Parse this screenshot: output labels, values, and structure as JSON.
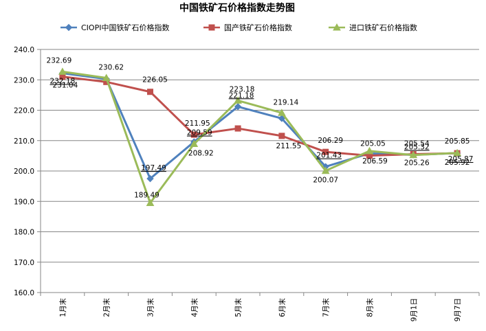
{
  "chart_data": {
    "type": "line",
    "title": "中国铁矿石价格指数走势图",
    "categories": [
      "1月末",
      "2月末",
      "3月末",
      "4月末",
      "5月末",
      "6月末",
      "7月末",
      "8月末",
      "9月1日",
      "9月7日"
    ],
    "ylim": [
      160,
      240
    ],
    "yticks": [
      "160.0",
      "170.0",
      "180.0",
      "190.0",
      "200.0",
      "210.0",
      "220.0",
      "230.0",
      "240.0"
    ],
    "grid": true,
    "legend_position": "top",
    "series": [
      {
        "name": "CIOPI中国铁矿石价格指数",
        "color": "#4F81BD",
        "marker": "diamond",
        "values": [
          232.18,
          230.3,
          197.49,
          209.59,
          221.18,
          217.3,
          201.43,
          205.8,
          205.32,
          205.87
        ],
        "labels": [
          "232.18",
          "",
          "197.49",
          "209.59",
          "221.18",
          "",
          "201.43",
          "",
          "205.32",
          "205.87"
        ]
      },
      {
        "name": "国产铁矿石价格指数",
        "color": "#C0504D",
        "marker": "square",
        "values": [
          231.04,
          229.3,
          226.05,
          211.95,
          214.0,
          211.55,
          206.29,
          205.05,
          205.54,
          205.85
        ],
        "labels": [
          "231.04",
          "",
          "226.05",
          "211.95",
          "",
          "211.55",
          "206.29",
          "205.05",
          "205.54",
          "205.85"
        ]
      },
      {
        "name": "进口铁矿石价格指数",
        "color": "#9BBB59",
        "marker": "triangle",
        "values": [
          232.69,
          230.62,
          189.49,
          208.92,
          223.18,
          219.14,
          200.07,
          206.59,
          205.26,
          205.92
        ],
        "labels": [
          "232.69",
          "230.62",
          "189.49",
          "208.92",
          "223.18",
          "219.14",
          "200.07",
          "206.59",
          "205.26",
          "205.92"
        ]
      }
    ]
  }
}
